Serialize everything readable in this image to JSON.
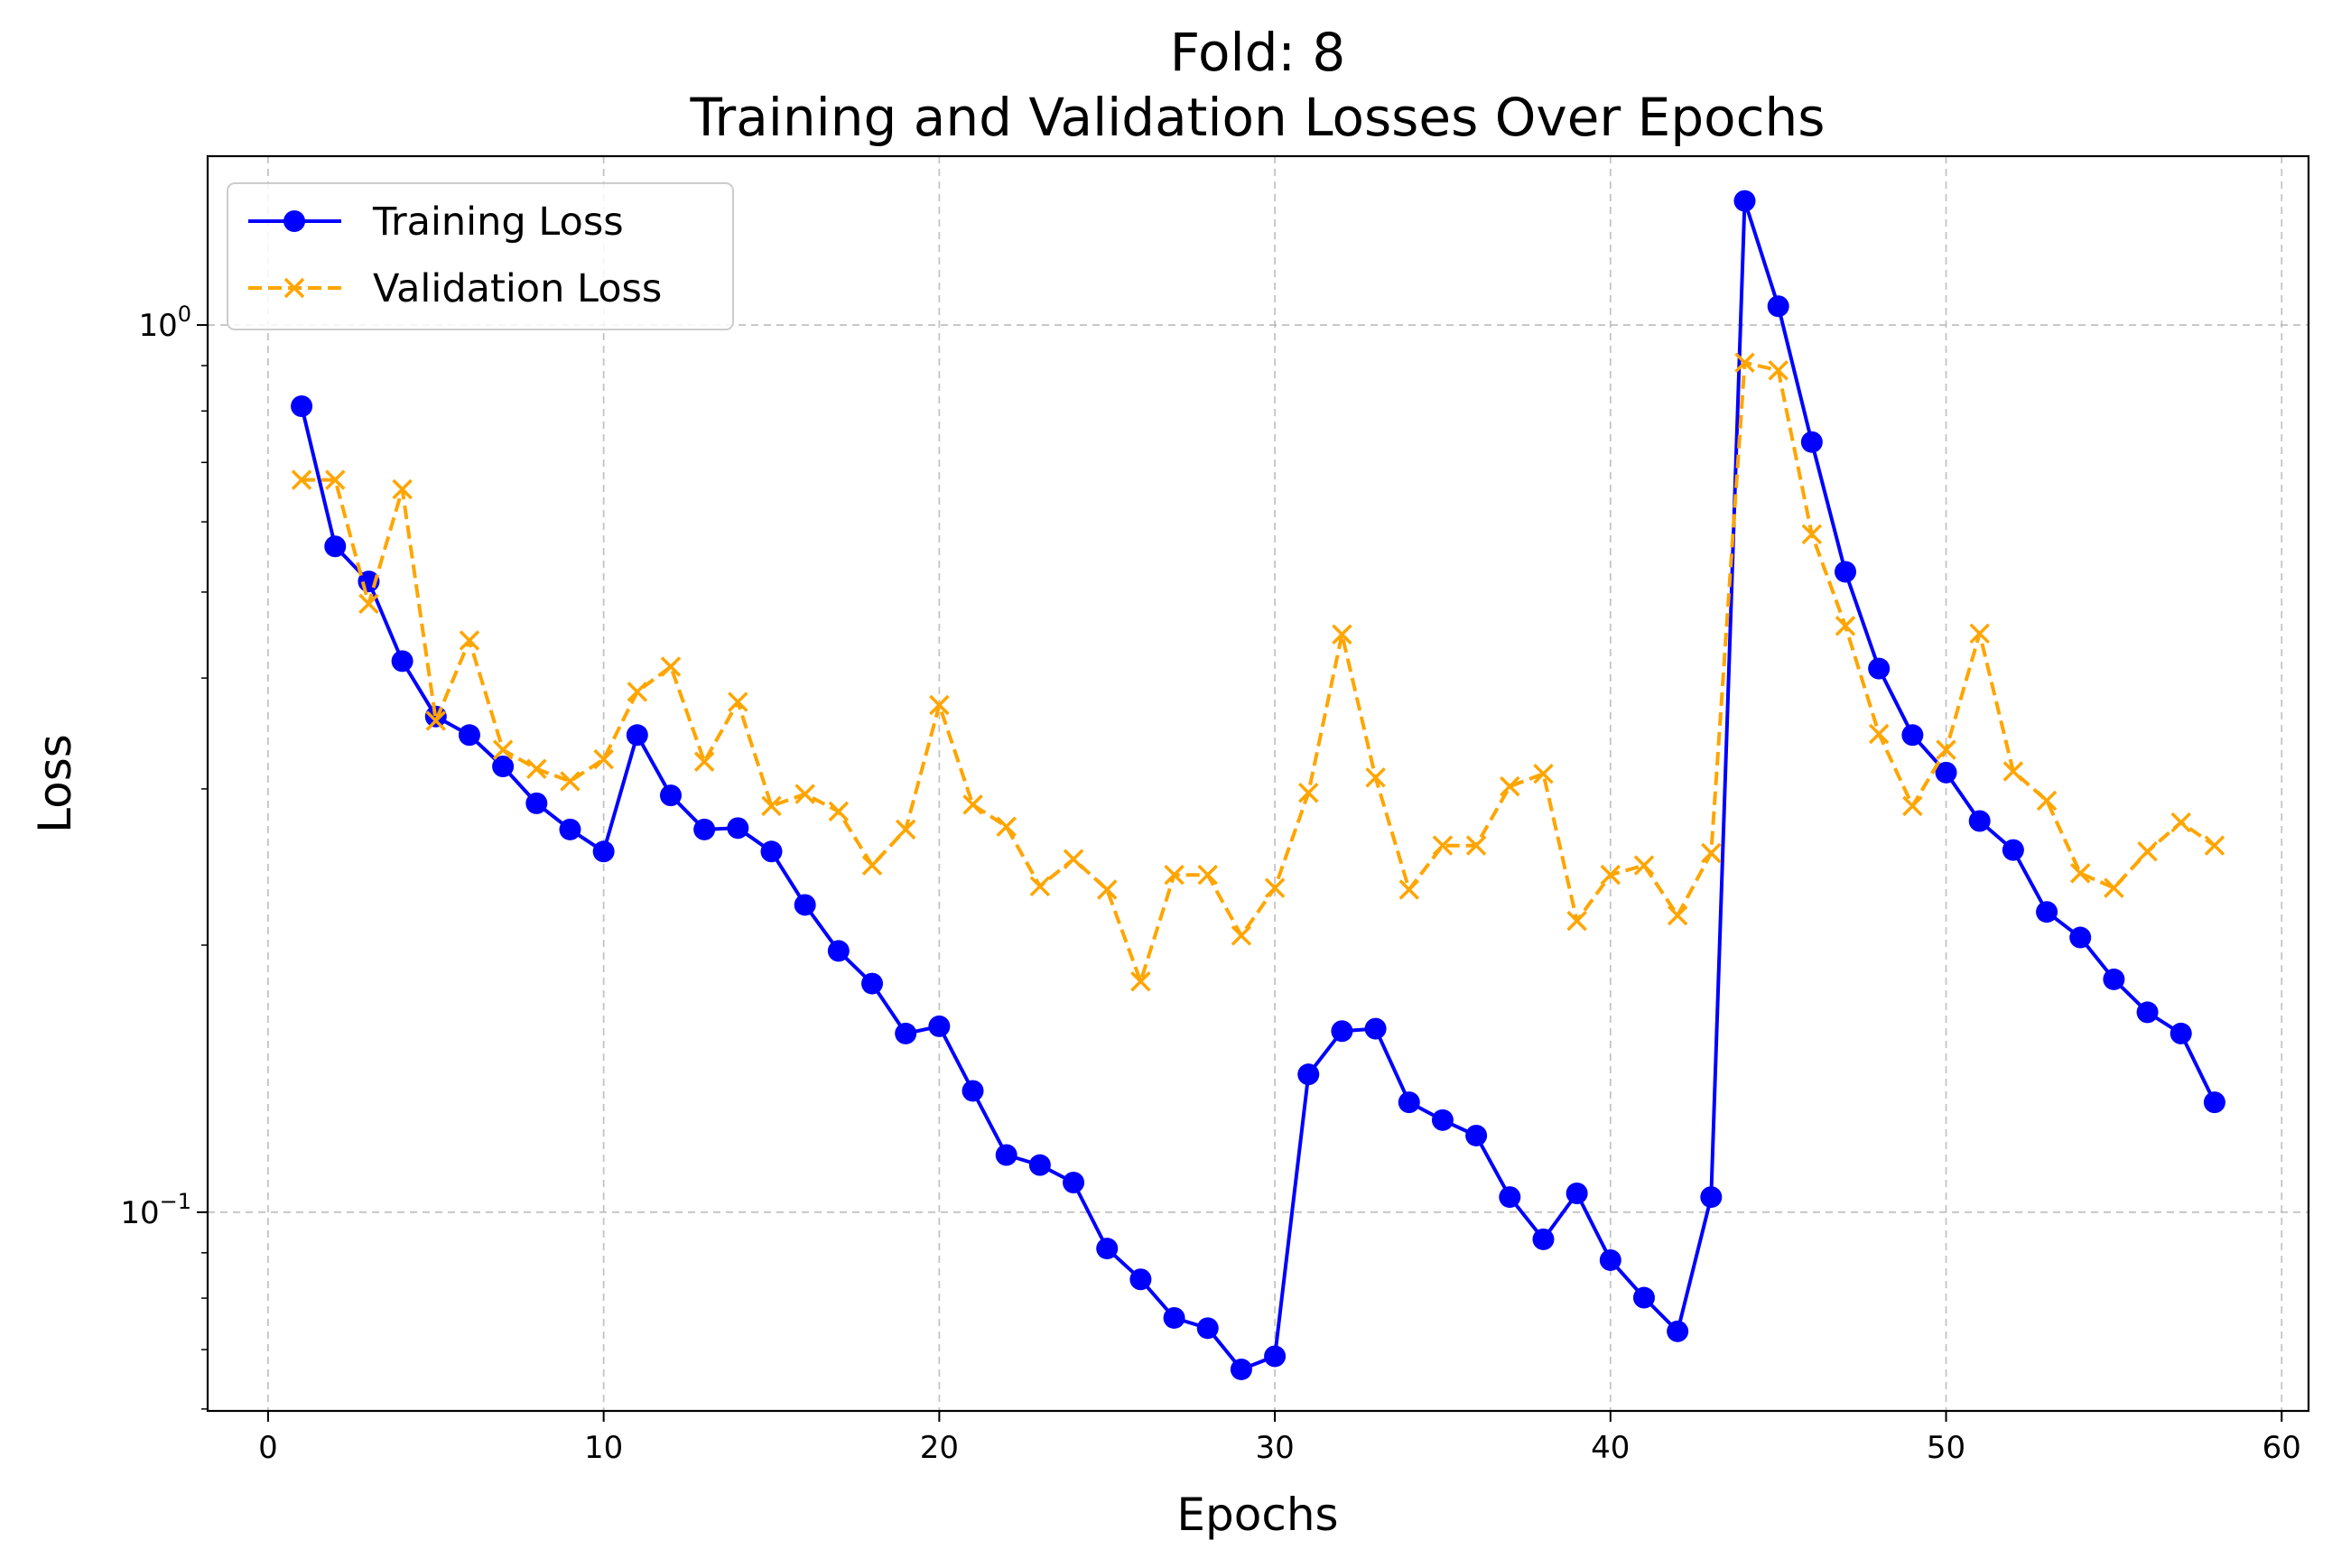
{
  "chart_data": {
    "type": "line",
    "title": "Fold: 8",
    "subtitle": "Training and Validation Losses Over Epochs",
    "xlabel": "Epochs",
    "ylabel": "Loss",
    "xlim": [
      -1.8,
      60.8
    ],
    "ylim": [
      0.0597,
      1.55
    ],
    "yscale": "log",
    "xticks": [
      0,
      10,
      20,
      30,
      40,
      50,
      60
    ],
    "xtick_labels": [
      "0",
      "10",
      "20",
      "30",
      "40",
      "50",
      "60"
    ],
    "yticks": [
      1.0,
      0.1
    ],
    "ytick_labels": [
      {
        "base": "10",
        "exp": "0"
      },
      {
        "base": "10",
        "exp": "−1"
      }
    ],
    "grid": true,
    "legend_position": "upper left",
    "x": [
      1,
      2,
      3,
      4,
      5,
      6,
      7,
      8,
      9,
      10,
      11,
      12,
      13,
      14,
      15,
      16,
      17,
      18,
      19,
      20,
      21,
      22,
      23,
      24,
      25,
      26,
      27,
      28,
      29,
      30,
      31,
      32,
      33,
      34,
      35,
      36,
      37,
      38,
      39,
      40,
      41,
      42,
      43,
      44,
      45,
      46,
      47,
      48,
      49,
      50,
      51,
      52,
      53,
      54,
      55,
      56,
      57,
      58
    ],
    "series": [
      {
        "name": "Training Loss",
        "color": "#0000ff",
        "linestyle": "solid",
        "marker": "circle",
        "values": [
          0.81,
          0.563,
          0.514,
          0.418,
          0.362,
          0.345,
          0.318,
          0.289,
          0.27,
          0.255,
          0.345,
          0.295,
          0.27,
          0.271,
          0.255,
          0.222,
          0.197,
          0.181,
          0.159,
          0.162,
          0.137,
          0.116,
          0.113,
          0.108,
          0.091,
          0.084,
          0.076,
          0.074,
          0.0665,
          0.0688,
          0.143,
          0.16,
          0.161,
          0.133,
          0.127,
          0.122,
          0.104,
          0.0932,
          0.105,
          0.0883,
          0.0801,
          0.0734,
          0.104,
          1.38,
          1.05,
          0.738,
          0.527,
          0.41,
          0.345,
          0.313,
          0.276,
          0.256,
          0.218,
          0.204,
          0.183,
          0.168,
          0.159,
          0.133
        ]
      },
      {
        "name": "Validation Loss",
        "color": "#ffa500",
        "linestyle": "dashed",
        "marker": "x",
        "values": [
          0.669,
          0.669,
          0.485,
          0.653,
          0.358,
          0.441,
          0.332,
          0.316,
          0.306,
          0.324,
          0.386,
          0.412,
          0.322,
          0.376,
          0.287,
          0.296,
          0.283,
          0.246,
          0.27,
          0.373,
          0.288,
          0.272,
          0.233,
          0.25,
          0.231,
          0.182,
          0.24,
          0.24,
          0.205,
          0.232,
          0.297,
          0.448,
          0.309,
          0.231,
          0.259,
          0.259,
          0.302,
          0.312,
          0.213,
          0.24,
          0.246,
          0.216,
          0.254,
          0.907,
          0.889,
          0.581,
          0.458,
          0.346,
          0.287,
          0.332,
          0.449,
          0.314,
          0.291,
          0.241,
          0.232,
          0.255,
          0.275,
          0.259
        ]
      }
    ]
  }
}
